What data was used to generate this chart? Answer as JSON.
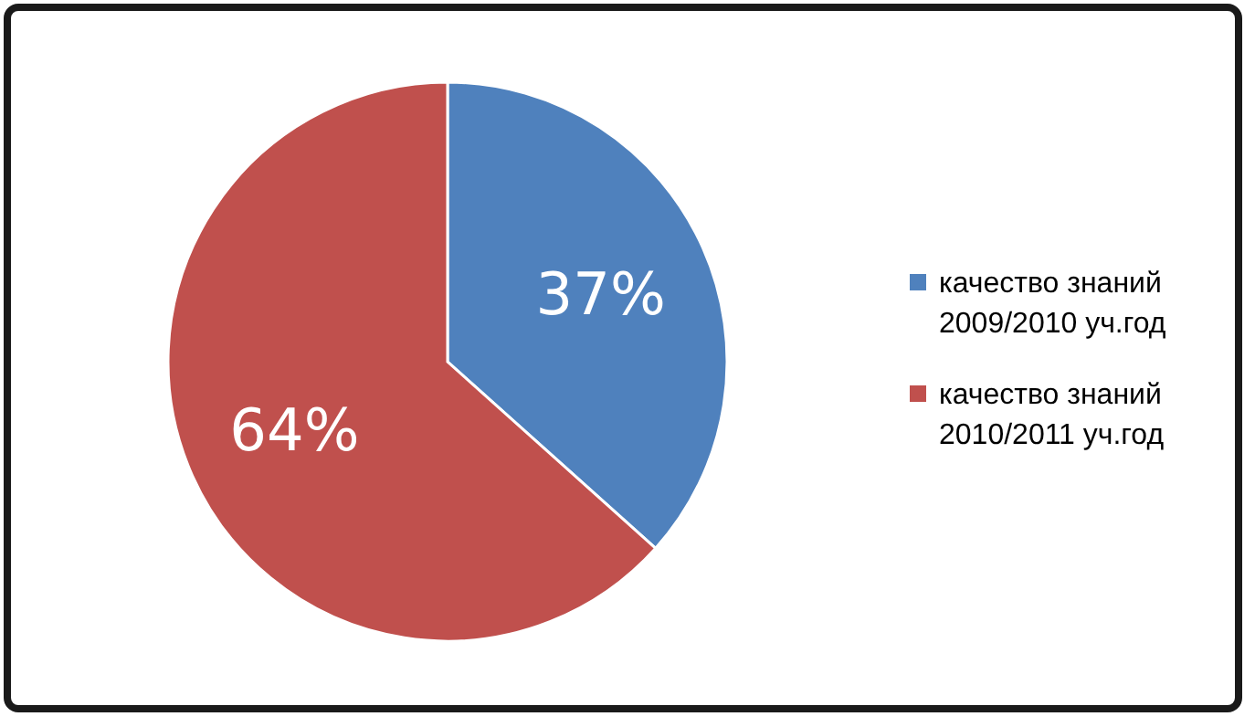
{
  "chart_data": {
    "type": "pie",
    "categories": [
      "качество знаний 2009/2010 уч.год",
      "качество знаний 2010/2011 уч.год"
    ],
    "values": [
      37,
      64
    ],
    "colors": [
      "#4f81bd",
      "#c0504d"
    ],
    "value_labels": [
      "37%",
      "64%"
    ],
    "legend": "right"
  }
}
